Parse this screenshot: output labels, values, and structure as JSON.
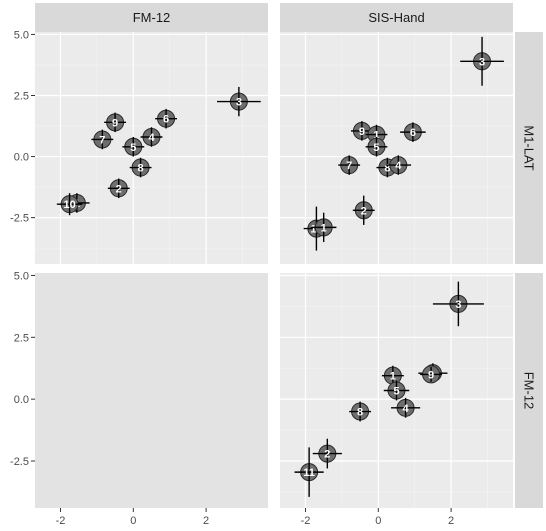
{
  "chart_data": {
    "type": "scatter",
    "columns": [
      "FM-12",
      "SIS-Hand"
    ],
    "rows": [
      "M1-LAT",
      "FM-12"
    ],
    "xlim": [
      -2.7,
      3.7
    ],
    "ylim": [
      -4.4,
      5.1
    ],
    "x_ticks": [
      -2,
      0,
      2
    ],
    "x_tick_labels": [
      "-2",
      "0",
      "2"
    ],
    "y_ticks": [
      -2.5,
      0,
      2.5,
      5
    ],
    "y_tick_labels": [
      "-2.5",
      "0.0",
      "2.5",
      "5.0"
    ],
    "grid": true,
    "panels": [
      {
        "row": "M1-LAT",
        "col": "FM-12",
        "points": [
          {
            "label": "1",
            "x": -1.55,
            "y": -1.9,
            "xerr": 0.35,
            "yerr": 0.4
          },
          {
            "label": "10",
            "x": -1.75,
            "y": -1.95,
            "xerr": 0.35,
            "yerr": 0.45
          },
          {
            "label": "2",
            "x": -0.4,
            "y": -1.3,
            "xerr": 0.3,
            "yerr": 0.4
          },
          {
            "label": "8",
            "x": 0.2,
            "y": -0.45,
            "xerr": 0.3,
            "yerr": 0.4
          },
          {
            "label": "7",
            "x": -0.85,
            "y": 0.7,
            "xerr": 0.3,
            "yerr": 0.4
          },
          {
            "label": "9",
            "x": -0.5,
            "y": 1.4,
            "xerr": 0.3,
            "yerr": 0.4
          },
          {
            "label": "5",
            "x": 0.0,
            "y": 0.4,
            "xerr": 0.3,
            "yerr": 0.4
          },
          {
            "label": "4",
            "x": 0.5,
            "y": 0.8,
            "xerr": 0.3,
            "yerr": 0.4
          },
          {
            "label": "6",
            "x": 0.9,
            "y": 1.55,
            "xerr": 0.3,
            "yerr": 0.4
          },
          {
            "label": "3",
            "x": 2.9,
            "y": 2.25,
            "xerr": 0.6,
            "yerr": 0.6
          }
        ]
      },
      {
        "row": "M1-LAT",
        "col": "SIS-Hand",
        "points": [
          {
            "label": "10",
            "x": -1.7,
            "y": -2.95,
            "xerr": 0.35,
            "yerr": 0.9
          },
          {
            "label": "1",
            "x": -1.5,
            "y": -2.9,
            "xerr": 0.35,
            "yerr": 0.6
          },
          {
            "label": "2",
            "x": -0.4,
            "y": -2.2,
            "xerr": 0.3,
            "yerr": 0.6
          },
          {
            "label": "7",
            "x": -0.8,
            "y": -0.35,
            "xerr": 0.3,
            "yerr": 0.4
          },
          {
            "label": "9",
            "x": -0.45,
            "y": 1.05,
            "xerr": 0.3,
            "yerr": 0.4
          },
          {
            "label": "1",
            "x": -0.05,
            "y": 0.9,
            "xerr": 0.3,
            "yerr": 0.4
          },
          {
            "label": "5",
            "x": -0.05,
            "y": 0.4,
            "xerr": 0.3,
            "yerr": 0.4
          },
          {
            "label": "8",
            "x": 0.25,
            "y": -0.45,
            "xerr": 0.3,
            "yerr": 0.4
          },
          {
            "label": "4",
            "x": 0.55,
            "y": -0.35,
            "xerr": 0.35,
            "yerr": 0.4
          },
          {
            "label": "6",
            "x": 0.95,
            "y": 1.0,
            "xerr": 0.35,
            "yerr": 0.4
          },
          {
            "label": "3",
            "x": 2.85,
            "y": 3.9,
            "xerr": 0.6,
            "yerr": 1.0
          }
        ]
      },
      {
        "row": "FM-12",
        "col": "FM-12",
        "points": []
      },
      {
        "row": "FM-12",
        "col": "SIS-Hand",
        "points": [
          {
            "label": "11",
            "x": -1.9,
            "y": -2.95,
            "xerr": 0.4,
            "yerr": 1.0
          },
          {
            "label": "2",
            "x": -1.4,
            "y": -2.2,
            "xerr": 0.4,
            "yerr": 0.6
          },
          {
            "label": "8",
            "x": -0.5,
            "y": -0.5,
            "xerr": 0.3,
            "yerr": 0.4
          },
          {
            "label": "1",
            "x": 0.4,
            "y": 0.95,
            "xerr": 0.3,
            "yerr": 0.4
          },
          {
            "label": "5",
            "x": 0.5,
            "y": 0.35,
            "xerr": 0.35,
            "yerr": 0.4
          },
          {
            "label": "4",
            "x": 0.75,
            "y": -0.35,
            "xerr": 0.4,
            "yerr": 0.4
          },
          {
            "label": "6",
            "x": 1.5,
            "y": 1.05,
            "xerr": 0.4,
            "yerr": 0.4
          },
          {
            "label": "9",
            "x": 1.45,
            "y": 1.0,
            "xerr": 0.3,
            "yerr": 0.3
          },
          {
            "label": "3",
            "x": 2.2,
            "y": 3.85,
            "xerr": 0.7,
            "yerr": 0.9
          }
        ]
      }
    ],
    "colors": {
      "panel_bg": "#ebebeb",
      "empty_panel_bg": "#e3e3e3",
      "strip_bg": "#d9d9d9",
      "grid_major": "#ffffff",
      "grid_minor": "#f5f5f5",
      "point_fill": "#6e6e6e",
      "point_stroke": "#2b2b2b",
      "errorbar": "#000000"
    }
  }
}
